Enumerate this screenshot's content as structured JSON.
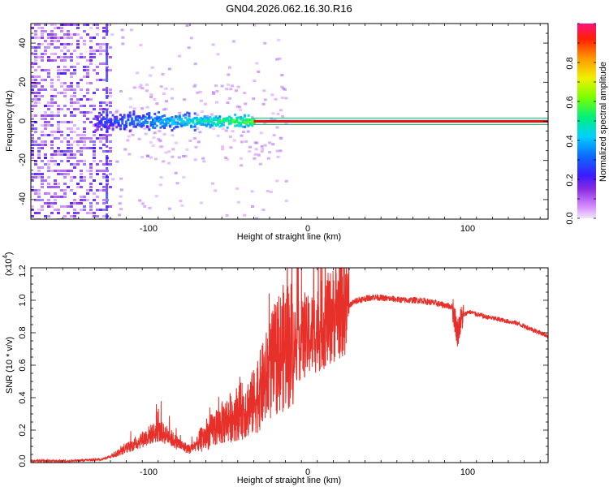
{
  "title": "GN04.2026.062.16.30.R16",
  "top_panel": {
    "xlabel": "Height of straight line (km)",
    "ylabel": "Frequency (Hz)",
    "colorbar_label": "Normalized spectral amplitude",
    "x_ticks": [
      "-100",
      "0",
      "100"
    ],
    "y_ticks": [
      "40",
      "20",
      "0",
      "-20",
      "-40"
    ],
    "colorbar_ticks": [
      "0.0",
      "0.2",
      "0.4",
      "0.6",
      "0.8"
    ]
  },
  "bottom_panel": {
    "xlabel": "Height of straight line (km)",
    "ylabel": "SNR (10 * v/v)",
    "y_multiplier_base": "(x10",
    "y_multiplier_exp": "4",
    "y_multiplier_close": ")",
    "x_ticks": [
      "-100",
      "0",
      "100"
    ],
    "y_ticks": [
      "0.0",
      "0.2",
      "0.4",
      "0.6",
      "0.8",
      "1.0",
      "1.2"
    ]
  },
  "colors": {
    "trace": "#e8302a",
    "line": "#ef1010"
  },
  "chart_data": [
    {
      "type": "heatmap",
      "title": "GN04.2026.062.16.30.R16",
      "xlabel": "Height of straight line (km)",
      "ylabel": "Frequency (Hz)",
      "xlim": [
        -175,
        150
      ],
      "ylim": [
        -50,
        50
      ],
      "colorbar": {
        "label": "Normalized spectral amplitude",
        "range": [
          0,
          1
        ]
      },
      "features": [
        {
          "name": "noise-field",
          "x_range": [
            -175,
            -125
          ],
          "freq_range": [
            -50,
            50
          ],
          "amplitude": 0.1
        },
        {
          "name": "carrier-spread",
          "x_range": [
            -135,
            -35
          ],
          "freq_range": [
            -8,
            8
          ],
          "amplitude": 0.45
        },
        {
          "name": "carrier-line",
          "x_range": [
            -35,
            150
          ],
          "freq": 0,
          "amplitude": 1.0
        }
      ]
    },
    {
      "type": "line",
      "xlabel": "Height of straight line (km)",
      "ylabel": "SNR (10 * v/v)",
      "y_multiplier": 10000,
      "xlim": [
        -175,
        150
      ],
      "ylim": [
        0,
        1.2
      ],
      "series": [
        {
          "name": "SNR",
          "x": [
            -175,
            -150,
            -130,
            -120,
            -110,
            -100,
            -95,
            -90,
            -80,
            -75,
            -70,
            -60,
            -50,
            -45,
            -40,
            -35,
            -30,
            -25,
            -20,
            -15,
            -10,
            -5,
            0,
            10,
            20,
            30,
            40,
            50,
            60,
            70,
            80,
            90,
            93,
            96,
            100,
            110,
            120,
            130,
            140,
            150
          ],
          "y": [
            0.01,
            0.01,
            0.02,
            0.06,
            0.11,
            0.17,
            0.19,
            0.17,
            0.1,
            0.08,
            0.12,
            0.2,
            0.27,
            0.3,
            0.32,
            0.36,
            0.45,
            0.55,
            0.65,
            0.7,
            0.72,
            0.74,
            0.77,
            0.85,
            0.94,
            1.0,
            1.02,
            1.01,
            1.0,
            1.0,
            0.98,
            0.96,
            0.8,
            0.9,
            0.93,
            0.9,
            0.88,
            0.86,
            0.82,
            0.78
          ]
        }
      ]
    }
  ]
}
